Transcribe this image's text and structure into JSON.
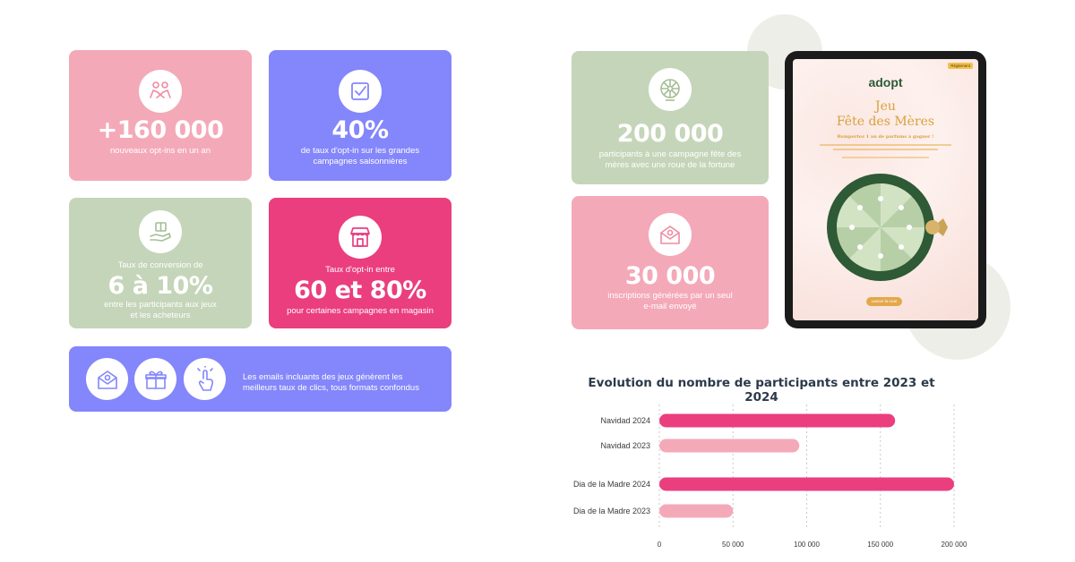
{
  "colors": {
    "pink": "#f4a9b8",
    "violet": "#8486fb",
    "sage": "#c5d5b9",
    "magenta": "#ea3e7f",
    "bar_2024": "#ea3e7f",
    "bar_2023": "#f4a9b8",
    "tablet_green": "#2e5a36"
  },
  "cards": {
    "optins": {
      "big": "+160 000",
      "small": "nouveaux opt-ins en un an",
      "icon": "handshake-icon"
    },
    "optin_rate": {
      "big": "40%",
      "small": "de taux d'opt-in sur les grandes campagnes saisonnières",
      "icon": "checkbox-icon"
    },
    "conversion": {
      "pre": "Taux de conversion de",
      "big": "6 à 10%",
      "small": "entre les participants aux jeux et les acheteurs",
      "icon": "gift-hand-icon"
    },
    "store": {
      "pre": "Taux d'opt-in entre",
      "big": "60 et 80%",
      "small": "pour certaines campagnes en magasin",
      "icon": "store-icon"
    },
    "participants": {
      "big": "200 000",
      "small": "participants à une campagne fête des mères avec une roue de la fortune",
      "icon": "wheel-icon"
    },
    "signups": {
      "big": "30 000",
      "small": "inscriptions générées par un seul e-mail envoyé",
      "icon": "email-icon"
    }
  },
  "emails_banner": {
    "text": "Les emails incluants des jeux génèrent les meilleurs taux de clics, tous formats confondus",
    "icons": [
      "email-icon",
      "gift-icon",
      "click-icon"
    ]
  },
  "tablet": {
    "logo": "adopt",
    "badge": "Règlement",
    "title_line1": "Jeu",
    "title_line2": "Fête des Mères",
    "subtitle": "Remportez 1 an de parfums à gagner !",
    "button": "Lancer la roue"
  },
  "chart_data": {
    "type": "bar",
    "orientation": "horizontal",
    "title": "Evolution du nombre de participants entre 2023 et 2024",
    "categories": [
      "Navidad 2024",
      "Navidad 2023",
      "Dia de la Madre 2024",
      "Dia de la Madre 2023"
    ],
    "values": [
      160000,
      95000,
      200000,
      50000
    ],
    "xlim": [
      0,
      200000
    ],
    "xticks": [
      "0",
      "50 000",
      "100 000",
      "150 000",
      "200 000"
    ],
    "xtick_values": [
      0,
      50000,
      100000,
      150000,
      200000
    ],
    "grid": true
  }
}
